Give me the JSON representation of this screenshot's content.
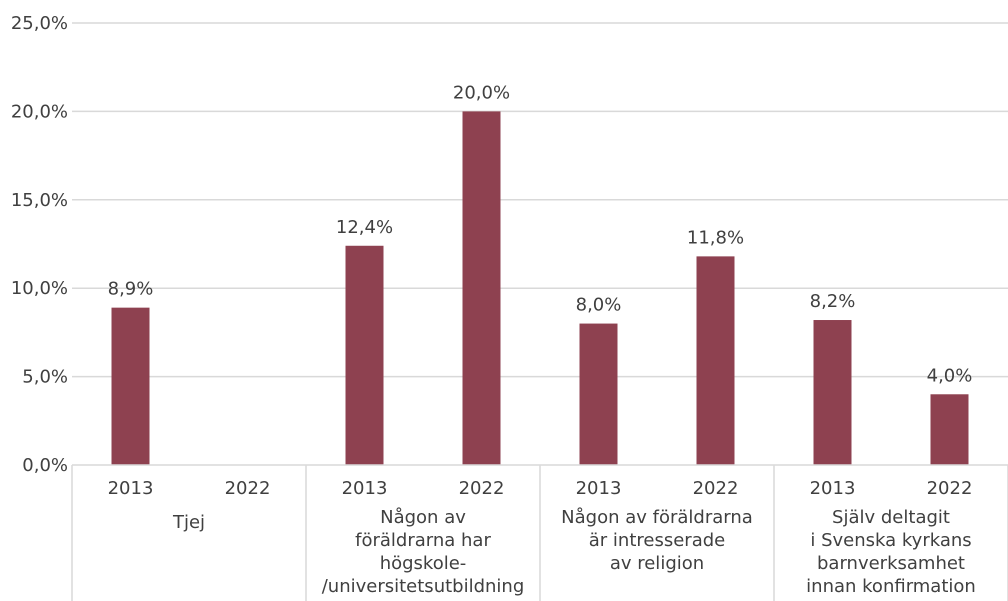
{
  "chart_data": {
    "type": "bar",
    "title": "",
    "xlabel": "",
    "ylabel": "",
    "ylim": [
      0,
      25
    ],
    "y_ticks": [
      "0,0%",
      "5,0%",
      "10,0%",
      "15,0%",
      "20,0%",
      "25,0%"
    ],
    "grid": true,
    "bar_color": "#8e4150",
    "groups": [
      {
        "label_lines": [
          "Tjej"
        ],
        "bars": [
          {
            "category": "2013",
            "value": 8.9,
            "label": "8,9%"
          },
          {
            "category": "2022",
            "value": null,
            "label": ""
          }
        ]
      },
      {
        "label_lines": [
          "Någon av",
          "föräldrarna har",
          "högskole-",
          "/universitetsutbildning"
        ],
        "bars": [
          {
            "category": "2013",
            "value": 12.4,
            "label": "12,4%"
          },
          {
            "category": "2022",
            "value": 20.0,
            "label": "20,0%"
          }
        ]
      },
      {
        "label_lines": [
          "Någon av föräldrarna",
          "är intresserade",
          "av religion"
        ],
        "bars": [
          {
            "category": "2013",
            "value": 8.0,
            "label": "8,0%"
          },
          {
            "category": "2022",
            "value": 11.8,
            "label": "11,8%"
          }
        ]
      },
      {
        "label_lines": [
          "Själv deltagit",
          "i Svenska kyrkans",
          "barnverksamhet",
          "innan konfirmation"
        ],
        "bars": [
          {
            "category": "2013",
            "value": 8.2,
            "label": "8,2%"
          },
          {
            "category": "2022",
            "value": 4.0,
            "label": "4,0%"
          }
        ]
      }
    ]
  }
}
